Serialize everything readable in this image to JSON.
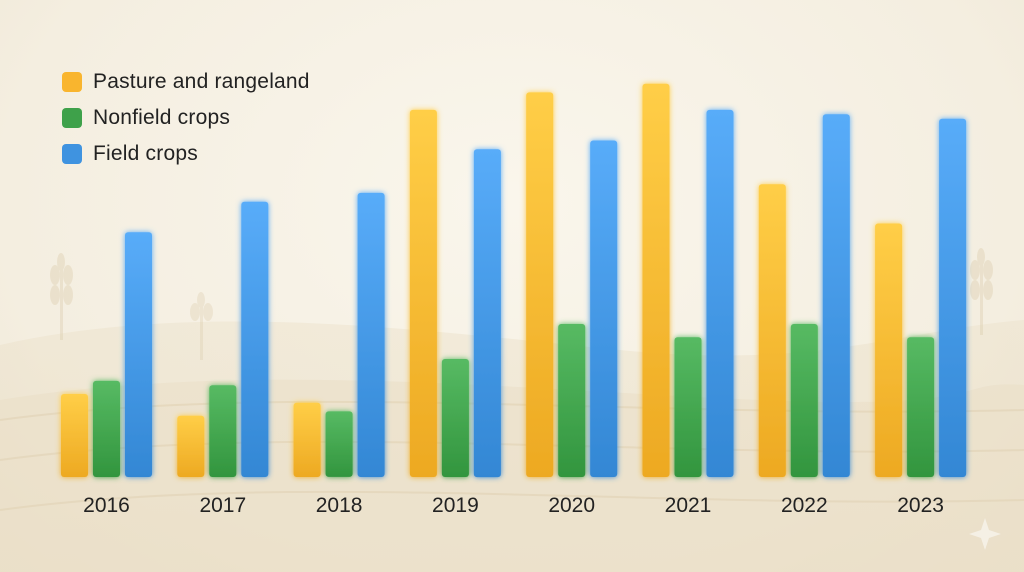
{
  "chart_data": {
    "type": "bar",
    "categories": [
      "2016",
      "2017",
      "2018",
      "2019",
      "2020",
      "2021",
      "2022",
      "2023"
    ],
    "series": [
      {
        "name": "Pasture and rangeland",
        "color": "#f9b52e",
        "values": [
          19,
          14,
          17,
          84,
          88,
          90,
          67,
          58
        ]
      },
      {
        "name": "Nonfield crops",
        "color": "#3ea14a",
        "values": [
          22,
          21,
          15,
          27,
          35,
          32,
          35,
          32
        ]
      },
      {
        "name": "Field crops",
        "color": "#3f93e0",
        "values": [
          56,
          63,
          65,
          75,
          77,
          84,
          83,
          82
        ]
      }
    ],
    "title": "",
    "xlabel": "",
    "ylabel": "",
    "ylim": [
      0,
      100
    ],
    "grid": false,
    "legend_position": "top-left"
  }
}
